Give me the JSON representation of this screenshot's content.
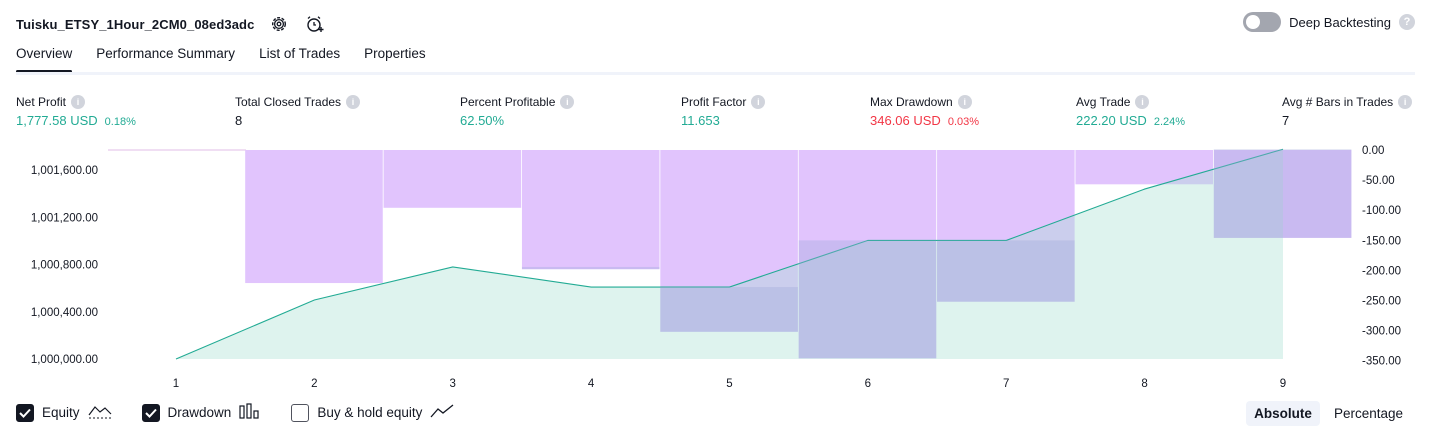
{
  "header": {
    "title": "Tuisku_ETSY_1Hour_2CM0_08ed3adc",
    "icons": [
      "settings-gear-icon",
      "add-alert-icon"
    ]
  },
  "deep_backtesting": {
    "label": "Deep Backtesting",
    "enabled": false,
    "help": "?"
  },
  "tabs": [
    {
      "label": "Overview",
      "active": true
    },
    {
      "label": "Performance Summary",
      "active": false
    },
    {
      "label": "List of Trades",
      "active": false
    },
    {
      "label": "Properties",
      "active": false
    }
  ],
  "metrics": [
    {
      "label": "Net Profit",
      "value": "1,777.58 USD",
      "pct": "0.18%",
      "color": "#22ab94"
    },
    {
      "label": "Total Closed Trades",
      "value": "8",
      "pct": "",
      "color": "#131722"
    },
    {
      "label": "Percent Profitable",
      "value": "62.50%",
      "pct": "",
      "color": "#22ab94"
    },
    {
      "label": "Profit Factor",
      "value": "11.653",
      "pct": "",
      "color": "#22ab94"
    },
    {
      "label": "Max Drawdown",
      "value": "346.06 USD",
      "pct": "0.03%",
      "color": "#f23645"
    },
    {
      "label": "Avg Trade",
      "value": "222.20 USD",
      "pct": "2.24%",
      "color": "#22ab94"
    },
    {
      "label": "Avg # Bars in Trades",
      "value": "7",
      "pct": "",
      "color": "#131722"
    }
  ],
  "chart_data": {
    "type": "area",
    "x": [
      1,
      2,
      3,
      4,
      5,
      6,
      7,
      8,
      9
    ],
    "y_left_ticks": [
      "1,001,600.00",
      "1,001,200.00",
      "1,000,800.00",
      "1,000,400.00",
      "1,000,000.00"
    ],
    "y_left_range": [
      1000000,
      1001777.58
    ],
    "y_right_ticks": [
      "0.00",
      "-50.00",
      "-100.00",
      "-150.00",
      "-200.00",
      "-250.00",
      "-300.00",
      "-350.00"
    ],
    "y_right_range": [
      -346.06,
      0
    ],
    "series": [
      {
        "name": "Equity",
        "values": [
          1000000,
          1000500,
          1000780,
          1000610,
          1000610,
          1001005,
          1001005,
          1001440,
          1001777.58
        ],
        "color": "#22ab94"
      },
      {
        "name": "Drawdown",
        "values": [
          0,
          -221,
          -96,
          -198,
          -302,
          -346.06,
          -252,
          -57,
          -146
        ],
        "color": "#ce93ff"
      }
    ]
  },
  "legend": [
    {
      "label": "Equity",
      "checked": true,
      "icon": "equity-line-icon"
    },
    {
      "label": "Drawdown",
      "checked": true,
      "icon": "drawdown-bars-icon"
    },
    {
      "label": "Buy & hold equity",
      "checked": false,
      "icon": "buy-hold-line-icon"
    }
  ],
  "mode": {
    "options": [
      "Absolute",
      "Percentage"
    ],
    "selected": "Absolute"
  }
}
